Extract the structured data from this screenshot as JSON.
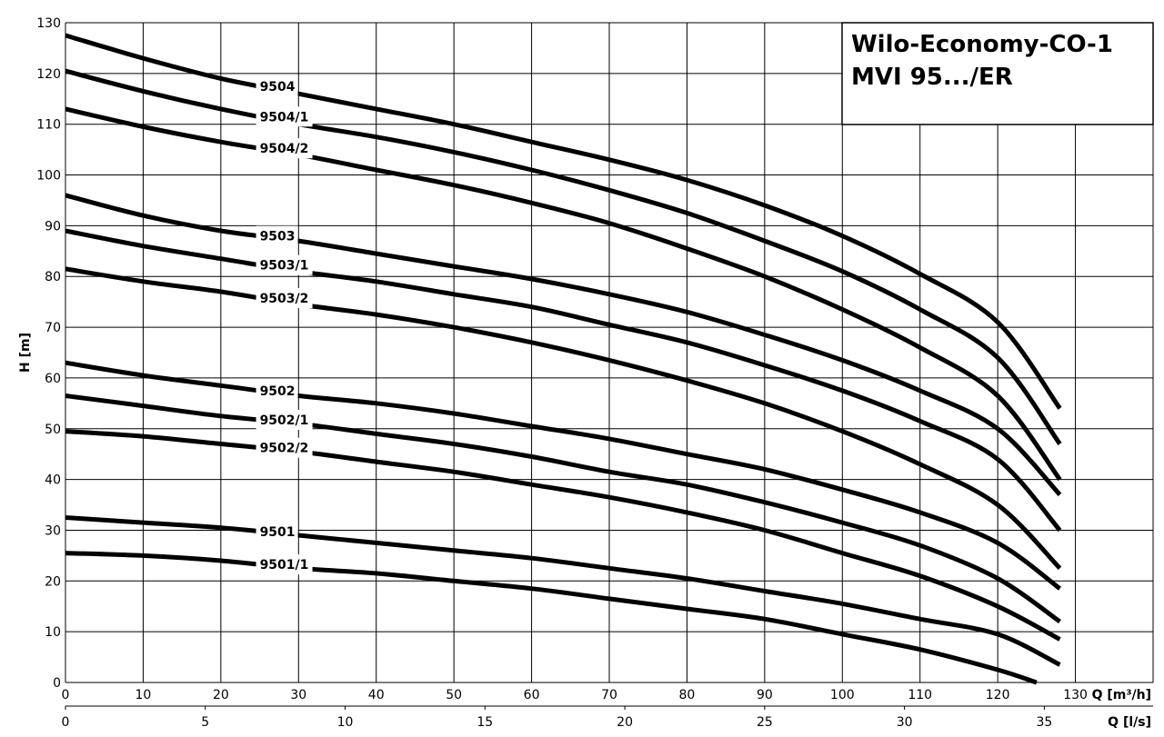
{
  "chart_data": {
    "type": "line",
    "title_lines": [
      "Wilo-Economy-CO-1",
      "MVI 95.../ER"
    ],
    "ylabel": "H [m]",
    "xlabel": "Q [m³/h]",
    "xlabel2": "Q [l/s]",
    "xlim": [
      0,
      140
    ],
    "ylim": [
      0,
      130
    ],
    "x_ticks": [
      0,
      10,
      20,
      30,
      40,
      50,
      60,
      70,
      80,
      90,
      100,
      110,
      120,
      130
    ],
    "y_ticks": [
      0,
      10,
      20,
      30,
      40,
      50,
      60,
      70,
      80,
      90,
      100,
      110,
      120,
      130
    ],
    "x2_ticks": [
      0,
      5,
      10,
      15,
      20,
      25,
      30,
      35
    ],
    "grid": true,
    "series": [
      {
        "name": "9504",
        "label_x": 25,
        "x": [
          0,
          10,
          20,
          30,
          40,
          50,
          60,
          70,
          80,
          90,
          100,
          110,
          120,
          128
        ],
        "y": [
          127.5,
          123,
          119,
          116,
          113,
          110,
          106.5,
          103,
          99,
          94,
          88,
          80.5,
          71,
          54
        ]
      },
      {
        "name": "9504/1",
        "label_x": 25,
        "x": [
          0,
          10,
          20,
          30,
          40,
          50,
          60,
          70,
          80,
          90,
          100,
          110,
          120,
          128
        ],
        "y": [
          120.5,
          116.5,
          113,
          110,
          107.5,
          104.5,
          101,
          97,
          92.5,
          87,
          81,
          73.5,
          64,
          47
        ]
      },
      {
        "name": "9504/2",
        "label_x": 25,
        "x": [
          0,
          10,
          20,
          30,
          40,
          50,
          60,
          70,
          80,
          90,
          100,
          110,
          120,
          128
        ],
        "y": [
          113,
          109.5,
          106.5,
          104,
          101,
          98,
          94.5,
          90.5,
          85.5,
          80,
          73.5,
          66,
          56.5,
          40
        ]
      },
      {
        "name": "9503",
        "label_x": 25,
        "x": [
          0,
          10,
          20,
          30,
          40,
          50,
          60,
          70,
          80,
          90,
          100,
          110,
          120,
          128
        ],
        "y": [
          96,
          92,
          89,
          87,
          84.5,
          82,
          79.5,
          76.5,
          73,
          68.5,
          63.5,
          57.5,
          50,
          37
        ]
      },
      {
        "name": "9503/1",
        "label_x": 25,
        "x": [
          0,
          10,
          20,
          30,
          40,
          50,
          60,
          70,
          80,
          90,
          100,
          110,
          120,
          128
        ],
        "y": [
          89,
          86,
          83.5,
          81,
          79,
          76.5,
          74,
          70.5,
          67,
          62.5,
          57.5,
          51.5,
          44,
          30
        ]
      },
      {
        "name": "9503/2",
        "label_x": 25,
        "x": [
          0,
          10,
          20,
          30,
          40,
          50,
          60,
          70,
          80,
          90,
          100,
          110,
          120,
          128
        ],
        "y": [
          81.5,
          79,
          77,
          74.5,
          72.5,
          70,
          67,
          63.5,
          59.5,
          55,
          49.5,
          43,
          35,
          22.5
        ]
      },
      {
        "name": "9502",
        "label_x": 25,
        "x": [
          0,
          10,
          20,
          30,
          40,
          50,
          60,
          70,
          80,
          90,
          100,
          110,
          120,
          128
        ],
        "y": [
          63,
          60.5,
          58.5,
          56.5,
          55,
          53,
          50.5,
          48,
          45,
          42,
          38,
          33.5,
          27.5,
          18.5
        ]
      },
      {
        "name": "9502/1",
        "label_x": 25,
        "x": [
          0,
          10,
          20,
          30,
          40,
          50,
          60,
          70,
          80,
          90,
          100,
          110,
          120,
          128
        ],
        "y": [
          56.5,
          54.5,
          52.5,
          51,
          49,
          47,
          44.5,
          41.5,
          39,
          35.5,
          31.5,
          27,
          20.5,
          12
        ]
      },
      {
        "name": "9502/2",
        "label_x": 25,
        "x": [
          0,
          10,
          20,
          30,
          40,
          50,
          60,
          70,
          80,
          90,
          100,
          110,
          120,
          128
        ],
        "y": [
          49.5,
          48.5,
          47,
          45.5,
          43.5,
          41.5,
          39,
          36.5,
          33.5,
          30,
          25.5,
          21,
          15,
          8.5
        ]
      },
      {
        "name": "9501",
        "label_x": 25,
        "x": [
          0,
          10,
          20,
          30,
          40,
          50,
          60,
          70,
          80,
          90,
          100,
          110,
          120,
          128
        ],
        "y": [
          32.5,
          31.5,
          30.5,
          29,
          27.5,
          26,
          24.5,
          22.5,
          20.5,
          18,
          15.5,
          12.5,
          9.5,
          3.5
        ]
      },
      {
        "name": "9501/1",
        "label_x": 25,
        "x": [
          0,
          10,
          20,
          30,
          40,
          50,
          60,
          70,
          80,
          90,
          100,
          110,
          120,
          125
        ],
        "y": [
          25.5,
          25,
          24,
          22.5,
          21.5,
          20,
          18.5,
          16.5,
          14.5,
          12.5,
          9.5,
          6.5,
          2.5,
          0
        ]
      }
    ]
  }
}
